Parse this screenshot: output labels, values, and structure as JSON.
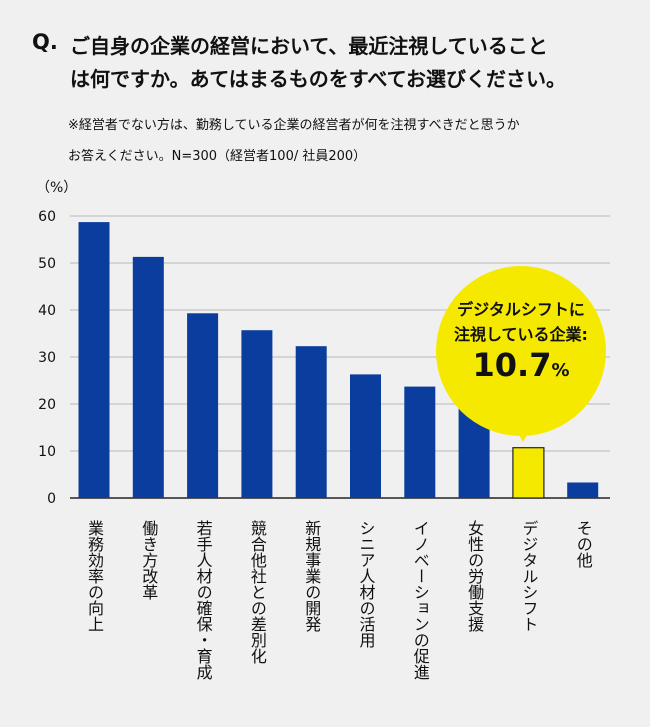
{
  "question": {
    "mark": "Q.",
    "line1": "ご自身の企業の経営において、最近注視していること",
    "line2": "は何ですか。あてはまるものをすべてお選びください。"
  },
  "note": {
    "line1": "※経営者でない方は、勤務している企業の経営者が何を注視すべきだと思うか",
    "line2": "お答えください。N=300（経営者100/ 社員200）"
  },
  "colors": {
    "bar": "#0a3d9e",
    "highlight": "#f6e900",
    "background": "#f0f0f0"
  },
  "callout": {
    "line1": "デジタルシフトに",
    "line2": "注視している企業:",
    "value": "10.7",
    "unit": "%"
  },
  "chart_data": {
    "type": "bar",
    "ylabel": "（%）",
    "ylim": [
      0,
      60
    ],
    "yticks": [
      "0",
      "10",
      "20",
      "30",
      "40",
      "50",
      "60"
    ],
    "grid": true,
    "categories": [
      "業務効率の向上",
      "働き方改革",
      "若手人材の確保・育成",
      "競合他社との差別化",
      "新規事業の開発",
      "シニア人材の活用",
      "イノベーションの促進",
      "女性の労働支援",
      "デジタルシフト",
      "その他"
    ],
    "values": [
      58.7,
      51.3,
      39.3,
      35.7,
      32.3,
      26.3,
      23.7,
      22.3,
      10.7,
      3.3
    ],
    "highlight_index": 8
  }
}
